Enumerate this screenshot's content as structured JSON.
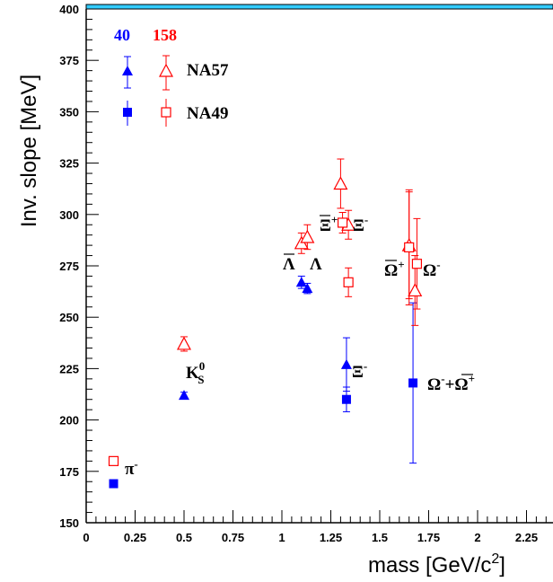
{
  "chart_data": {
    "type": "scatter",
    "xlabel": "mass  [GeV/c",
    "xlabel_sup": "2",
    "xlabel_close": "]",
    "ylabel": "Inv. slope  [MeV]",
    "xlim": [
      0,
      2.4
    ],
    "ylim": [
      150,
      400
    ],
    "x_ticks": [
      {
        "value": 0,
        "label": "0"
      },
      {
        "value": 0.25,
        "label": "0.25"
      },
      {
        "value": 0.5,
        "label": "0.5"
      },
      {
        "value": 0.75,
        "label": "0.75"
      },
      {
        "value": 1,
        "label": "1"
      },
      {
        "value": 1.25,
        "label": "1.25"
      },
      {
        "value": 1.5,
        "label": "1.5"
      },
      {
        "value": 1.75,
        "label": "1.75"
      },
      {
        "value": 2,
        "label": "2"
      },
      {
        "value": 2.25,
        "label": "2.25"
      }
    ],
    "y_ticks": [
      {
        "value": 150,
        "label": "150"
      },
      {
        "value": 175,
        "label": "175"
      },
      {
        "value": 200,
        "label": "200"
      },
      {
        "value": 225,
        "label": "225"
      },
      {
        "value": 250,
        "label": "250"
      },
      {
        "value": 275,
        "label": "275"
      },
      {
        "value": 300,
        "label": "300"
      },
      {
        "value": 325,
        "label": "325"
      },
      {
        "value": 350,
        "label": "350"
      },
      {
        "value": 375,
        "label": "375"
      },
      {
        "value": 400,
        "label": "400"
      }
    ],
    "legend": {
      "placement": "top-left",
      "energies": [
        {
          "label": "40",
          "color": "#0000ff"
        },
        {
          "label": "158",
          "color": "#ff0000"
        }
      ],
      "experiments": [
        {
          "label": "NA57",
          "marker": "triangle"
        },
        {
          "label": "NA49",
          "marker": "square"
        }
      ]
    },
    "series": [
      {
        "energy": "40",
        "experiment": "NA57",
        "marker": "triangle-filled",
        "color": "#0000ff",
        "points": [
          {
            "particle": "K0S",
            "x": 0.5,
            "y": 212,
            "err": 1.5
          },
          {
            "particle": "Lambda",
            "x": 1.1,
            "y": 267,
            "err": 3
          },
          {
            "particle": "AntiLambda",
            "x": 1.13,
            "y": 264,
            "err": 2.5
          },
          {
            "particle": "Xi-",
            "x": 1.33,
            "y": 227,
            "err": 13
          }
        ]
      },
      {
        "energy": "40",
        "experiment": "NA49",
        "marker": "square-filled",
        "color": "#0000ff",
        "points": [
          {
            "particle": "pi-",
            "x": 0.14,
            "y": 169,
            "err": 0
          },
          {
            "particle": "Xi-",
            "x": 1.33,
            "y": 210,
            "err": 6
          },
          {
            "particle": "Omega-+AntiOmega+",
            "x": 1.67,
            "y": 218,
            "err": 39
          }
        ]
      },
      {
        "energy": "158",
        "experiment": "NA57",
        "marker": "triangle-open",
        "color": "#ff0000",
        "points": [
          {
            "particle": "K0S",
            "x": 0.5,
            "y": 237,
            "err": 3.5
          },
          {
            "particle": "Lambda",
            "x": 1.1,
            "y": 286,
            "err": 5
          },
          {
            "particle": "AntiLambda",
            "x": 1.13,
            "y": 289,
            "err": 6
          },
          {
            "particle": "Xi-",
            "x": 1.3,
            "y": 315,
            "err": 12
          },
          {
            "particle": "AntiXi+",
            "x": 1.34,
            "y": 295,
            "err": 7
          },
          {
            "particle": "Omega-",
            "x": 1.65,
            "y": 285,
            "err": 26
          },
          {
            "particle": "AntiOmega+",
            "x": 1.68,
            "y": 263,
            "err": 17
          }
        ]
      },
      {
        "energy": "158",
        "experiment": "NA49",
        "marker": "square-open",
        "color": "#ff0000",
        "points": [
          {
            "particle": "pi-",
            "x": 0.14,
            "y": 180,
            "err": 0
          },
          {
            "particle": "Xi-",
            "x": 1.31,
            "y": 296,
            "err": 5
          },
          {
            "particle": "AntiXi+",
            "x": 1.34,
            "y": 267,
            "err": 7
          },
          {
            "particle": "Omega-",
            "x": 1.65,
            "y": 284,
            "err": 28
          },
          {
            "particle": "AntiOmega+",
            "x": 1.69,
            "y": 276,
            "err": 22
          }
        ]
      }
    ],
    "annotations": {
      "pi": {
        "main": "π",
        "sup": "-"
      },
      "k0s": {
        "main": "K",
        "sup": "0",
        "sub": "S"
      },
      "lambda_bar": "Λ",
      "lambda": "Λ",
      "xi_bar": "Ξ",
      "xi_bar_sup": "+",
      "xi": "Ξ",
      "xi_sup": "-",
      "xi_low": "Ξ",
      "xi_low_sup": "-",
      "omega_bar": "Ω",
      "omega_bar_sup": "+",
      "omega": "Ω",
      "omega_sup": "-",
      "omega_sum_a": "Ω",
      "omega_sum_a_sup": "-",
      "omega_sum_plus": "+",
      "omega_sum_b": "Ω",
      "omega_sum_b_sup": "+"
    }
  }
}
